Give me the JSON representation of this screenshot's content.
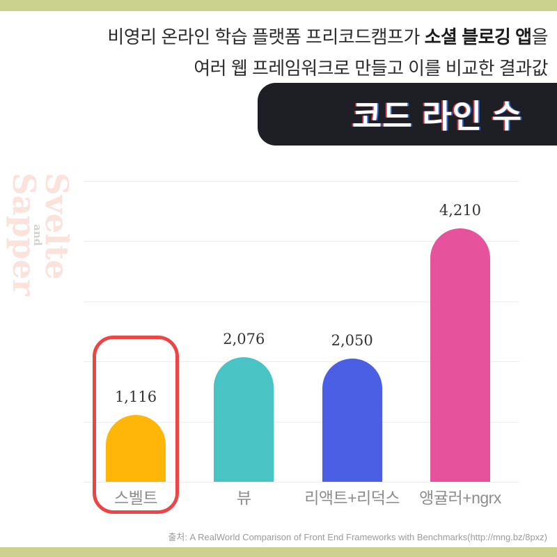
{
  "page": {
    "background": "#ffffff",
    "accent_bar_color": "#cbd28e"
  },
  "header": {
    "line1_pre": "비영리 온라인 학습 플랫폼 프리코드캠프가 ",
    "line1_bold": "소셜 블로깅 앱",
    "line1_post": "을",
    "line2": "여러 웹 프레임워크로 만들고 이를 비교한 결과값"
  },
  "title_banner": {
    "text": "코드 라인 수",
    "background": "#1e1f24",
    "text_color": "#ffffff"
  },
  "side_logo": {
    "word1": "Svelte",
    "conjunction": "and",
    "word2": "Sapper",
    "word_color": "#fbe3dc",
    "conjunction_color": "#d2d2cd"
  },
  "chart_data": {
    "type": "bar",
    "title": "코드 라인 수",
    "categories": [
      "스벨트",
      "뷰",
      "리액트+리덕스",
      "앵귤러+ngrx"
    ],
    "values": [
      1116,
      2076,
      2050,
      4210
    ],
    "value_labels": [
      "1,116",
      "2,076",
      "2,050",
      "4,210"
    ],
    "bar_colors": [
      "#ffb608",
      "#49c3c4",
      "#4a5fe3",
      "#e6529b"
    ],
    "xlabel": "",
    "ylabel": "",
    "ylim": [
      0,
      5000
    ],
    "gridlines": [
      0,
      1000,
      2000,
      3000,
      4000,
      5000
    ],
    "grid_color": "#ececec",
    "legend_position": "none",
    "highlight": {
      "index": 0,
      "outline_color": "#eb4545"
    }
  },
  "footer": {
    "source": "출처: A RealWorld Comparison of Front End Frameworks with Benchmarks(http://mng.bz/8pxz)"
  }
}
